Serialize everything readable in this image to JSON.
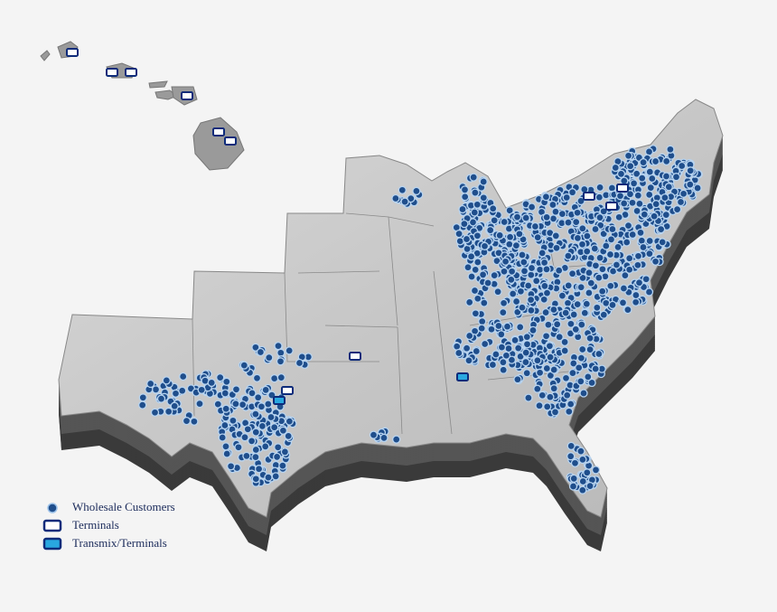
{
  "legend": {
    "items": [
      "Wholesale Customers",
      "Terminals",
      "Transmix/Terminals"
    ]
  }
}
